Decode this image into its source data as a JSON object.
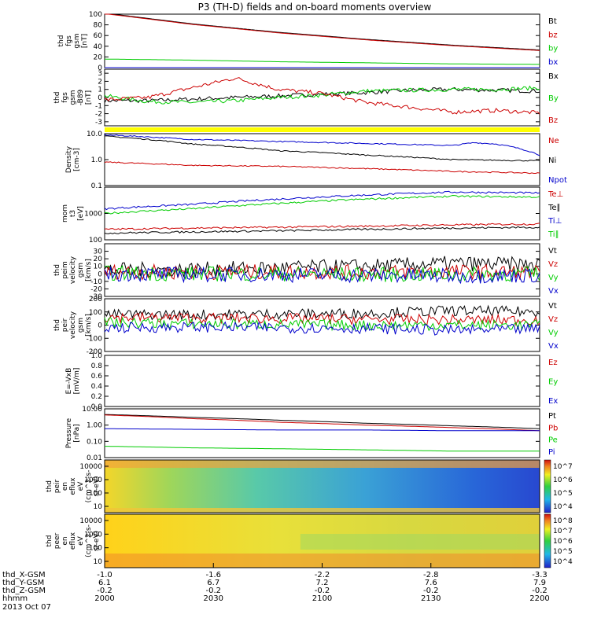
{
  "title": "P3 (TH-D) fields and on-board moments overview",
  "date": "2013 Oct 07",
  "time_axis": {
    "ticks": [
      "2000",
      "2030",
      "2100",
      "2130",
      "2200"
    ],
    "rows": [
      {
        "label": "thd_X-GSM",
        "values": [
          "-1.0",
          "-1.6",
          "-2.2",
          "-2.8",
          "-3.3"
        ]
      },
      {
        "label": "thd_Y-GSM",
        "values": [
          "6.1",
          "6.7",
          "7.2",
          "7.6",
          "7.9"
        ]
      },
      {
        "label": "thd_Z-GSM",
        "values": [
          "-0.2",
          "-0.2",
          "-0.2",
          "-0.2",
          "-0.2"
        ]
      },
      {
        "label": "hhmm",
        "values": [
          "2000",
          "2030",
          "2100",
          "2130",
          "2200"
        ]
      }
    ]
  },
  "colors": {
    "black": "#000000",
    "red": "#cc0000",
    "green": "#00cc00",
    "blue": "#0000cc",
    "yellow": "#ffff00"
  },
  "chart_data": [
    {
      "id": "fgs",
      "type": "line",
      "ylabel_lines": [
        "thd",
        "fgs",
        "gsm",
        "[nT]"
      ],
      "ylim": [
        0,
        100
      ],
      "yticks": [
        "0",
        "20",
        "40",
        "60",
        "80",
        "100"
      ],
      "legend": [
        {
          "name": "Bt",
          "color": "#000000"
        },
        {
          "name": "bz",
          "color": "#cc0000"
        },
        {
          "name": "by",
          "color": "#00cc00"
        },
        {
          "name": "bx",
          "color": "#0000cc"
        }
      ],
      "series": [
        {
          "name": "Bt",
          "color": "#000000",
          "x": [
            0,
            0.2,
            0.4,
            0.6,
            0.8,
            1.0
          ],
          "y": [
            102,
            82,
            66,
            53,
            42,
            33
          ]
        },
        {
          "name": "bz",
          "color": "#cc0000",
          "x": [
            0,
            0.2,
            0.4,
            0.6,
            0.8,
            1.0
          ],
          "y": [
            101,
            81,
            65,
            52,
            41,
            32
          ]
        },
        {
          "name": "by",
          "color": "#00cc00",
          "x": [
            0,
            0.2,
            0.4,
            0.6,
            0.8,
            1.0
          ],
          "y": [
            16,
            14,
            11,
            9,
            7,
            6
          ]
        },
        {
          "name": "bx",
          "color": "#0000cc",
          "x": [
            0,
            0.2,
            0.4,
            0.6,
            0.8,
            1.0
          ],
          "y": [
            0,
            0,
            0,
            0,
            0,
            0
          ]
        }
      ]
    },
    {
      "id": "fgs_dsl",
      "type": "line",
      "ylabel_lines": [
        "thd",
        "fgs",
        "gsm",
        "-B89",
        "[nT]"
      ],
      "ylim": [
        -3.5,
        3.5
      ],
      "yticks": [
        "-3",
        "-2",
        "-1",
        "0",
        "1",
        "2",
        "3"
      ],
      "legend": [
        {
          "name": "Bx",
          "color": "#000000"
        },
        {
          "name": "By",
          "color": "#00cc00"
        },
        {
          "name": "Bz",
          "color": "#cc0000"
        }
      ],
      "series": [
        {
          "name": "Bx",
          "color": "#000000",
          "x": [
            0,
            0.1,
            0.2,
            0.3,
            0.4,
            0.5,
            0.6,
            0.7,
            0.8,
            0.9,
            1.0
          ],
          "y": [
            -0.4,
            -0.4,
            -0.2,
            0.0,
            0.2,
            0.4,
            0.6,
            0.9,
            1.0,
            0.9,
            0.8
          ]
        },
        {
          "name": "By",
          "color": "#00cc00",
          "x": [
            0,
            0.1,
            0.2,
            0.3,
            0.4,
            0.5,
            0.6,
            0.7,
            0.8,
            0.9,
            1.0
          ],
          "y": [
            0.2,
            -0.5,
            -0.6,
            -0.4,
            0.0,
            0.3,
            0.8,
            0.9,
            1.0,
            1.0,
            1.2
          ]
        },
        {
          "name": "Bz",
          "color": "#cc0000",
          "x": [
            0,
            0.1,
            0.2,
            0.3,
            0.4,
            0.5,
            0.6,
            0.7,
            0.8,
            0.9,
            1.0
          ],
          "y": [
            -0.3,
            0.0,
            1.2,
            2.4,
            1.0,
            0.5,
            -0.6,
            -1.2,
            -1.8,
            -1.6,
            -1.9
          ]
        }
      ]
    },
    {
      "id": "density",
      "type": "line",
      "yscale": "log",
      "ylabel_lines": [
        "Density",
        "[cm-3]"
      ],
      "ylim": [
        0.1,
        10
      ],
      "yticks": [
        "0.1",
        "1.0",
        "10.0"
      ],
      "legend": [
        {
          "name": "Ne",
          "color": "#cc0000"
        },
        {
          "name": "Ni",
          "color": "#000000"
        },
        {
          "name": "Npot",
          "color": "#0000cc"
        }
      ],
      "series": [
        {
          "name": "Npot",
          "color": "#0000cc",
          "x": [
            0,
            0.2,
            0.4,
            0.6,
            0.8,
            0.85,
            0.9,
            1.0
          ],
          "y": [
            9,
            6,
            5,
            4.2,
            3.5,
            4.5,
            4.0,
            1.5
          ]
        },
        {
          "name": "Ni",
          "color": "#000000",
          "x": [
            0,
            0.2,
            0.4,
            0.6,
            0.8,
            1.0
          ],
          "y": [
            8,
            4,
            2.2,
            1.5,
            1.0,
            0.9
          ]
        },
        {
          "name": "Ne",
          "color": "#cc0000",
          "x": [
            0,
            0.2,
            0.4,
            0.6,
            0.8,
            1.0
          ],
          "y": [
            0.8,
            0.6,
            0.55,
            0.45,
            0.35,
            0.3
          ]
        }
      ]
    },
    {
      "id": "temps",
      "type": "line",
      "yscale": "log",
      "ylabel_lines": [
        "mom",
        "t3",
        "[eV]"
      ],
      "ylim": [
        100,
        10000
      ],
      "yticks": [
        "100",
        "1000"
      ],
      "legend": [
        {
          "name": "Te⊥",
          "color": "#cc0000"
        },
        {
          "name": "Te∥",
          "color": "#000000"
        },
        {
          "name": "Ti⊥",
          "color": "#0000cc"
        },
        {
          "name": "Ti∥",
          "color": "#00cc00"
        }
      ],
      "series": [
        {
          "name": "Ti⊥",
          "color": "#0000cc",
          "x": [
            0,
            0.2,
            0.4,
            0.6,
            0.8,
            1.0
          ],
          "y": [
            1500,
            2200,
            3500,
            5000,
            6500,
            6000
          ]
        },
        {
          "name": "Ti∥",
          "color": "#00cc00",
          "x": [
            0,
            0.2,
            0.4,
            0.6,
            0.8,
            1.0
          ],
          "y": [
            1000,
            1500,
            2400,
            3500,
            4500,
            4200
          ]
        },
        {
          "name": "Te⊥",
          "color": "#cc0000",
          "x": [
            0,
            0.2,
            0.4,
            0.6,
            0.8,
            1.0
          ],
          "y": [
            250,
            280,
            300,
            330,
            370,
            400
          ]
        },
        {
          "name": "Te∥",
          "color": "#000000",
          "x": [
            0,
            0.2,
            0.4,
            0.6,
            0.8,
            1.0
          ],
          "y": [
            180,
            200,
            220,
            250,
            280,
            300
          ]
        }
      ]
    },
    {
      "id": "peim_velocity_gsm",
      "type": "line",
      "ylabel_lines": [
        "thd",
        "peim",
        "velocity",
        "gsm",
        "[km/s]"
      ],
      "ylim": [
        -30,
        40
      ],
      "yticks": [
        "-30",
        "-20",
        "-10",
        "0",
        "10",
        "20",
        "30"
      ],
      "legend": [
        {
          "name": "Vt",
          "color": "#000000"
        },
        {
          "name": "Vz",
          "color": "#cc0000"
        },
        {
          "name": "Vy",
          "color": "#00cc00"
        },
        {
          "name": "Vx",
          "color": "#0000cc"
        }
      ],
      "series": [
        {
          "name": "Vt",
          "color": "#000000",
          "x": [
            0,
            0.2,
            0.4,
            0.6,
            0.8,
            1.0
          ],
          "y": [
            5,
            6,
            8,
            10,
            14,
            12
          ]
        },
        {
          "name": "Vz",
          "color": "#cc0000",
          "x": [
            0,
            0.2,
            0.4,
            0.6,
            0.8,
            1.0
          ],
          "y": [
            3,
            2,
            3,
            2,
            3,
            2
          ]
        },
        {
          "name": "Vy",
          "color": "#00cc00",
          "x": [
            0,
            0.2,
            0.4,
            0.6,
            0.8,
            1.0
          ],
          "y": [
            1,
            0,
            0,
            -1,
            -1,
            0
          ]
        },
        {
          "name": "Vx",
          "color": "#0000cc",
          "x": [
            0,
            0.2,
            0.4,
            0.6,
            0.8,
            1.0
          ],
          "y": [
            0,
            -1,
            -1,
            -2,
            -3,
            -2
          ]
        }
      ]
    },
    {
      "id": "peir_velocity_gsm",
      "type": "line",
      "ylabel_lines": [
        "thd",
        "peir",
        "velocity",
        "gsm",
        "[km/s]"
      ],
      "ylim": [
        -200,
        200
      ],
      "yticks": [
        "-200",
        "-100",
        "0",
        "100",
        "200"
      ],
      "legend": [
        {
          "name": "Vt",
          "color": "#000000"
        },
        {
          "name": "Vz",
          "color": "#cc0000"
        },
        {
          "name": "Vy",
          "color": "#00cc00"
        },
        {
          "name": "Vx",
          "color": "#0000cc"
        }
      ],
      "series": [
        {
          "name": "Vt",
          "color": "#000000",
          "x": [
            0,
            0.2,
            0.4,
            0.6,
            0.8,
            1.0
          ],
          "y": [
            80,
            80,
            85,
            90,
            110,
            100
          ]
        },
        {
          "name": "Vz",
          "color": "#cc0000",
          "x": [
            0,
            0.2,
            0.4,
            0.6,
            0.8,
            1.0
          ],
          "y": [
            60,
            55,
            50,
            45,
            40,
            40
          ]
        },
        {
          "name": "Vy",
          "color": "#00cc00",
          "x": [
            0,
            0.2,
            0.4,
            0.6,
            0.8,
            1.0
          ],
          "y": [
            20,
            10,
            5,
            0,
            0,
            0
          ]
        },
        {
          "name": "Vx",
          "color": "#0000cc",
          "x": [
            0,
            0.2,
            0.4,
            0.6,
            0.8,
            1.0
          ],
          "y": [
            -20,
            -15,
            -20,
            -25,
            -40,
            -30
          ]
        }
      ]
    },
    {
      "id": "efield",
      "type": "line",
      "ylabel_lines": [
        "E=-VxB",
        "[mV/m]"
      ],
      "ylim": [
        0,
        1
      ],
      "yticks": [
        "0.0",
        "0.2",
        "0.4",
        "0.6",
        "0.8",
        "1.0"
      ],
      "legend": [
        {
          "name": "Ez",
          "color": "#cc0000"
        },
        {
          "name": "Ey",
          "color": "#00cc00"
        },
        {
          "name": "Ex",
          "color": "#0000cc"
        }
      ],
      "series": []
    },
    {
      "id": "pressure",
      "type": "line",
      "yscale": "log",
      "ylabel_lines": [
        "Pressure",
        "[nPa]"
      ],
      "ylim": [
        0.01,
        10
      ],
      "yticks": [
        "0.01",
        "0.10",
        "1.00",
        "10.00"
      ],
      "legend": [
        {
          "name": "Pt",
          "color": "#000000"
        },
        {
          "name": "Pb",
          "color": "#cc0000"
        },
        {
          "name": "Pe",
          "color": "#00cc00"
        },
        {
          "name": "Pi",
          "color": "#0000cc"
        }
      ],
      "series": [
        {
          "name": "Pt",
          "color": "#000000",
          "x": [
            0,
            0.2,
            0.4,
            0.6,
            0.8,
            1.0
          ],
          "y": [
            4.5,
            3.0,
            2.0,
            1.3,
            0.9,
            0.6
          ]
        },
        {
          "name": "Pb",
          "color": "#cc0000",
          "x": [
            0,
            0.2,
            0.4,
            0.6,
            0.8,
            1.0
          ],
          "y": [
            4.2,
            2.5,
            1.5,
            1.0,
            0.7,
            0.45
          ]
        },
        {
          "name": "Pi",
          "color": "#0000cc",
          "x": [
            0,
            0.2,
            0.4,
            0.6,
            0.8,
            1.0
          ],
          "y": [
            0.6,
            0.55,
            0.5,
            0.5,
            0.45,
            0.45
          ]
        },
        {
          "name": "Pe",
          "color": "#00cc00",
          "x": [
            0,
            0.2,
            0.4,
            0.6,
            0.8,
            1.0
          ],
          "y": [
            0.05,
            0.04,
            0.035,
            0.03,
            0.025,
            0.025
          ]
        }
      ]
    },
    {
      "id": "peir_en_eflux",
      "type": "heatmap",
      "ylabel_lines": [
        "thd",
        "peir",
        "en",
        "eflux",
        "eV",
        "(cm^2-s-",
        "sr-eV)"
      ],
      "yticks": [
        "10",
        "100",
        "1000",
        "10000"
      ],
      "colorbar_ticks": [
        "10^4",
        "10^5",
        "10^6",
        "10^7"
      ]
    },
    {
      "id": "peer_en_eflux",
      "type": "heatmap",
      "ylabel_lines": [
        "thd",
        "peer",
        "en",
        "eflux",
        "eV",
        "(cm^2-s-",
        "sr-eV)"
      ],
      "yticks": [
        "10",
        "100",
        "1000",
        "10000"
      ],
      "colorbar_ticks": [
        "10^4",
        "10^5",
        "10^6",
        "10^7",
        "10^8"
      ]
    }
  ]
}
